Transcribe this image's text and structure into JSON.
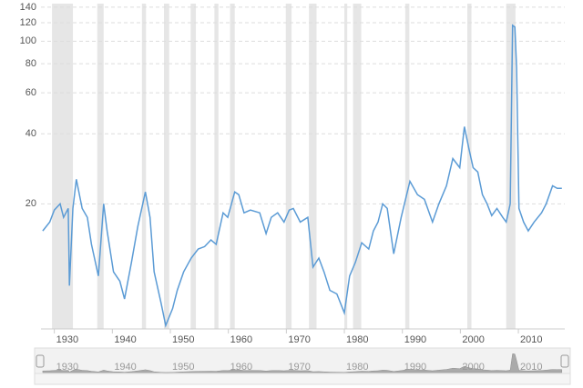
{
  "chart_data": {
    "type": "line",
    "yscale": "log",
    "grid": true,
    "xlim": [
      1927.7,
      2018
    ],
    "ylim": [
      5.8,
      145
    ],
    "xticks": [
      1930,
      1940,
      1950,
      1960,
      1970,
      1980,
      1990,
      2000,
      2010
    ],
    "yticks": [
      20,
      40,
      60,
      80,
      100,
      120,
      140
    ],
    "bands": [
      [
        1929.6,
        1933.2
      ],
      [
        1937.4,
        1938.5
      ],
      [
        1945.1,
        1945.8
      ],
      [
        1948.9,
        1949.8
      ],
      [
        1953.5,
        1954.4
      ],
      [
        1957.6,
        1958.3
      ],
      [
        1960.3,
        1961.1
      ],
      [
        1969.9,
        1970.9
      ],
      [
        1973.9,
        1975.2
      ],
      [
        1980.0,
        1980.5
      ],
      [
        1981.5,
        1982.9
      ],
      [
        1990.5,
        1991.2
      ],
      [
        2001.2,
        2001.9
      ],
      [
        2007.9,
        2009.5
      ]
    ],
    "band_color": "#e6e6e6",
    "series": [
      {
        "color": "#5b9bd5",
        "x": [
          1928.0,
          1929.2,
          1930.0,
          1931.0,
          1931.6,
          1932.4,
          1932.6,
          1933.2,
          1933.8,
          1934.8,
          1935.7,
          1936.4,
          1937.6,
          1938.5,
          1939.1,
          1940.2,
          1941.3,
          1942.1,
          1943.3,
          1944.4,
          1945.7,
          1946.5,
          1947.2,
          1948.4,
          1949.2,
          1950.4,
          1951.2,
          1952.3,
          1953.6,
          1954.8,
          1955.9,
          1957.0,
          1957.9,
          1959.1,
          1959.9,
          1961.1,
          1961.8,
          1962.7,
          1963.8,
          1965.4,
          1966.5,
          1967.4,
          1968.5,
          1969.6,
          1970.5,
          1971.2,
          1972.4,
          1973.7,
          1974.6,
          1975.6,
          1976.5,
          1977.5,
          1978.7,
          1980.0,
          1980.9,
          1981.9,
          1983.0,
          1984.2,
          1985.0,
          1985.8,
          1986.6,
          1987.4,
          1988.5,
          1989.8,
          1991.3,
          1992.6,
          1993.8,
          1995.2,
          1996.3,
          1997.6,
          1998.7,
          1999.9,
          2000.7,
          2001.5,
          2002.2,
          2003.0,
          2003.8,
          2004.6,
          2005.4,
          2006.3,
          2007.3,
          2007.9,
          2008.6,
          2009.0,
          2009.4,
          2009.7,
          2010.1,
          2010.9,
          2011.7,
          2012.7,
          2014.0,
          2014.8,
          2015.9,
          2016.7,
          2017.5
        ],
        "values": [
          15.3,
          16.7,
          18.8,
          20,
          17.5,
          19.1,
          8.9,
          19.1,
          25.5,
          19.1,
          17.5,
          13.4,
          9.8,
          20,
          15.3,
          10.2,
          9.3,
          7.8,
          11.2,
          16.0,
          22.5,
          17.5,
          10.2,
          7.5,
          6.0,
          7.1,
          8.5,
          10.2,
          11.7,
          12.8,
          13.1,
          14.0,
          13.4,
          18.3,
          17.5,
          22.5,
          21.9,
          18.3,
          18.8,
          18.3,
          14.9,
          17.5,
          18.3,
          16.7,
          18.8,
          19.1,
          16.7,
          17.5,
          10.7,
          11.7,
          10.2,
          8.5,
          8.2,
          6.8,
          9.8,
          11.2,
          13.6,
          12.8,
          15.3,
          16.7,
          20,
          19.1,
          12.2,
          17.5,
          25.0,
          21.9,
          20.9,
          16.7,
          20,
          23.9,
          31.3,
          28.6,
          42.9,
          34.3,
          28.6,
          27.4,
          21.9,
          20,
          17.8,
          19.1,
          17.5,
          16.7,
          20,
          117,
          115,
          76.8,
          19.1,
          16.7,
          15.3,
          16.7,
          18.3,
          20,
          23.9,
          23.3,
          23.3
        ]
      }
    ]
  }
}
